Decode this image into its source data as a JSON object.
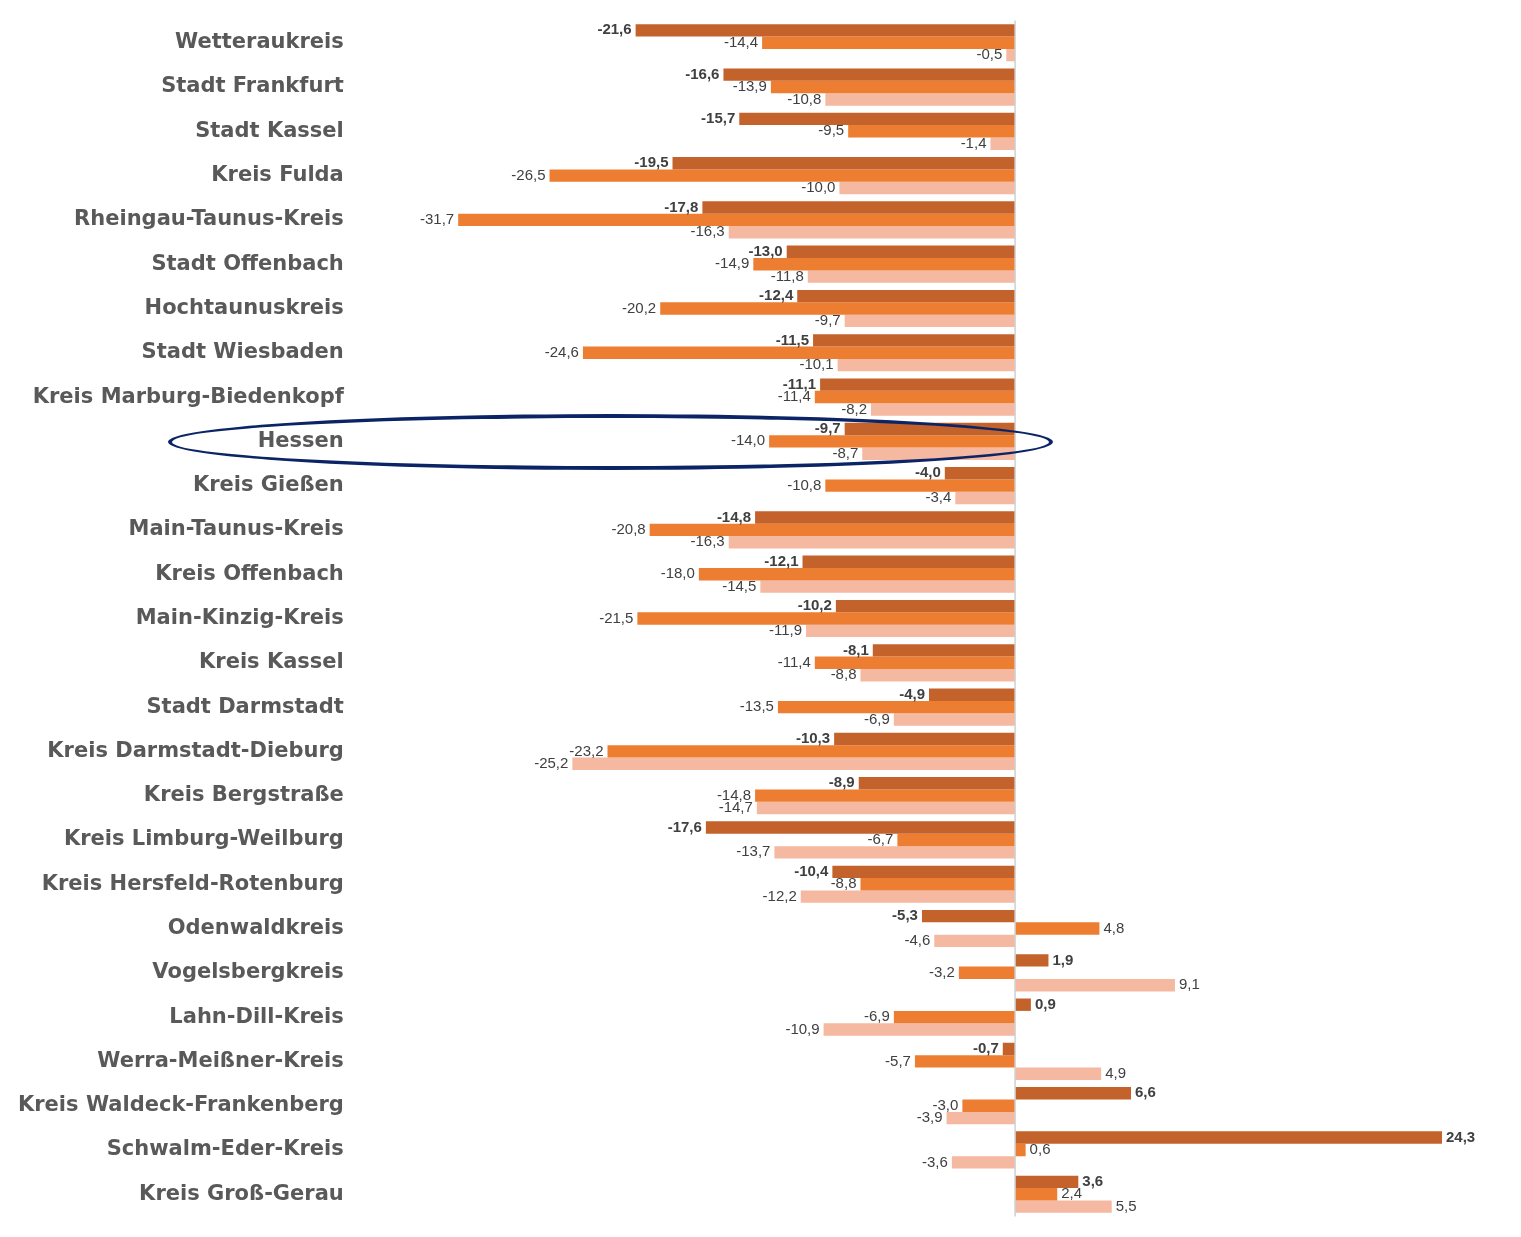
{
  "chart_data": {
    "type": "bar",
    "orientation": "horizontal",
    "grid": false,
    "legend": false,
    "categories": [
      "Wetteraukreis",
      "Stadt Frankfurt",
      "Stadt Kassel",
      "Kreis Fulda",
      "Rheingau-Taunus-Kreis",
      "Stadt Offenbach",
      "Hochtaunuskreis",
      "Stadt Wiesbaden",
      "Kreis Marburg-Biedenkopf",
      "Hessen",
      "Kreis Gießen",
      "Main-Taunus-Kreis",
      "Kreis Offenbach",
      "Main-Kinzig-Kreis",
      "Kreis Kassel",
      "Stadt Darmstadt",
      "Kreis Darmstadt-Dieburg",
      "Kreis Bergstraße",
      "Kreis Limburg-Weilburg",
      "Kreis Hersfeld-Rotenburg",
      "Odenwaldkreis",
      "Vogelsbergkreis",
      "Lahn-Dill-Kreis",
      "Werra-Meißner-Kreis",
      "Kreis Waldeck-Frankenberg",
      "Schwalm-Eder-Kreis",
      "Kreis Groß-Gerau"
    ],
    "series": [
      {
        "color": "#c3622a",
        "values": [
          -21.6,
          -16.6,
          -15.7,
          -19.5,
          -17.8,
          -13.0,
          -12.4,
          -11.5,
          -11.1,
          -9.7,
          -4.0,
          -14.8,
          -12.1,
          -10.2,
          -8.1,
          -4.9,
          -10.3,
          -8.9,
          -17.6,
          -10.4,
          -5.3,
          1.9,
          0.9,
          -0.7,
          6.6,
          24.3,
          3.6
        ],
        "value_labels": [
          "-21,6",
          "-16,6",
          "-15,7",
          "-19,5",
          "-17,8",
          "-13,0",
          "-12,4",
          "-11,5",
          "-11,1",
          "-9,7",
          "-4,0",
          "-14,8",
          "-12,1",
          "-10,2",
          "-8,1",
          "-4,9",
          "-10,3",
          "-8,9",
          "-17,6",
          "-10,4",
          "-5,3",
          "1,9",
          "0,9",
          "-0,7",
          "6,6",
          "24,3",
          "3,6"
        ]
      },
      {
        "color": "#ed7d31",
        "values": [
          -14.4,
          -13.9,
          -9.5,
          -26.5,
          -31.7,
          -14.9,
          -20.2,
          -24.6,
          -11.4,
          -14.0,
          -10.8,
          -20.8,
          -18.0,
          -21.5,
          -11.4,
          -13.5,
          -23.2,
          -14.8,
          -6.7,
          -8.8,
          4.8,
          -3.2,
          -6.9,
          -5.7,
          -3.0,
          0.6,
          2.4
        ],
        "value_labels": [
          "-14,4",
          "-13,9",
          "-9,5",
          "-26,5",
          "-31,7",
          "-14,9",
          "-20,2",
          "-24,6",
          "-11,4",
          "-14,0",
          "-10,8",
          "-20,8",
          "-18,0",
          "-21,5",
          "-11,4",
          "-13,5",
          "-23,2",
          "-14,8",
          "-6,7",
          "-8,8",
          "4,8",
          "-3,2",
          "-6,9",
          "-5,7",
          "-3,0",
          "0,6",
          "2,4"
        ]
      },
      {
        "color": "#f4b9a0",
        "values": [
          -0.5,
          -10.8,
          -1.4,
          -10.0,
          -16.3,
          -11.8,
          -9.7,
          -10.1,
          -8.2,
          -8.7,
          -3.4,
          -16.3,
          -14.5,
          -11.9,
          -8.8,
          -6.9,
          -25.2,
          -14.7,
          -13.7,
          -12.2,
          -4.6,
          9.1,
          -10.9,
          4.9,
          -3.9,
          -3.6,
          5.5
        ],
        "value_labels": [
          "-0,5",
          "-10,8",
          "-1,4",
          "-10,0",
          "-16,3",
          "-11,8",
          "-9,7",
          "-10,1",
          "-8,2",
          "-8,7",
          "-3,4",
          "-16,3",
          "-14,5",
          "-11,9",
          "-8,8",
          "-6,9",
          "-25,2",
          "-14,7",
          "-13,7",
          "-12,2",
          "-4,6",
          "9,1",
          "-10,9",
          "4,9",
          "-3,9",
          "-3,6",
          "5,5"
        ]
      }
    ]
  }
}
